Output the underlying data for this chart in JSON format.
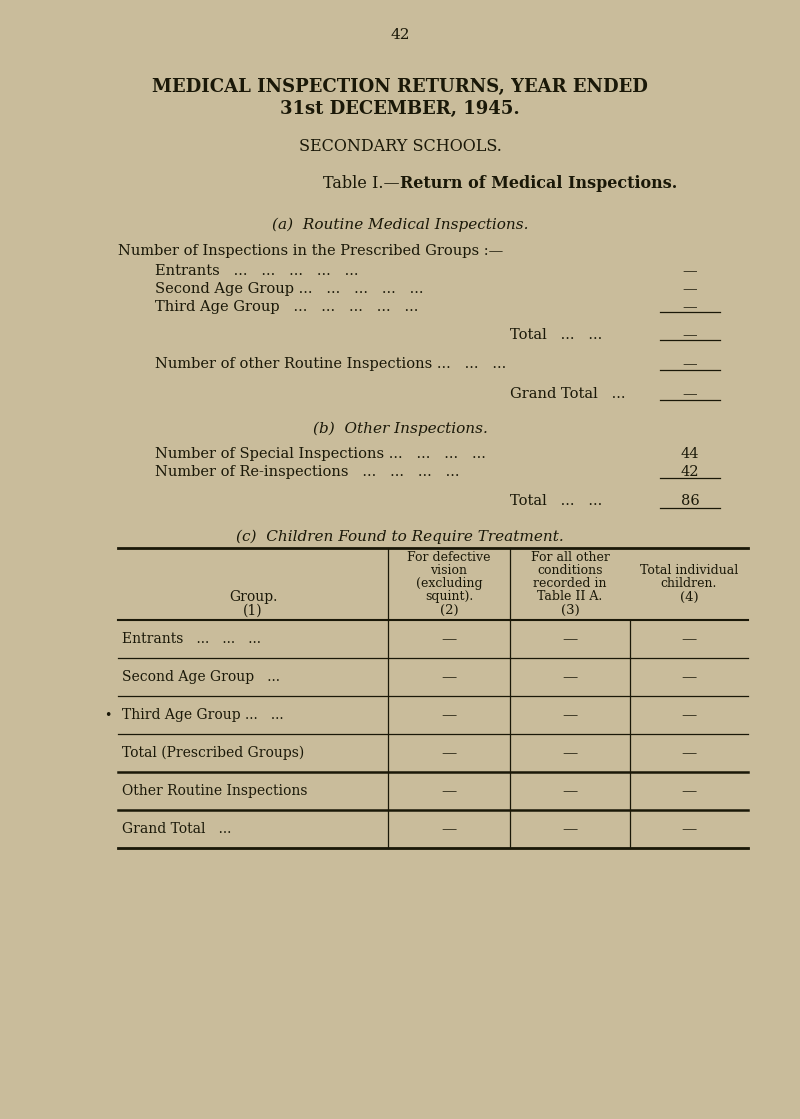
{
  "bg_color": "#c9bc9b",
  "page_number": "42",
  "title_line1": "MEDICAL INSPECTION RETURNS, YEAR ENDED",
  "title_line2": "31st DECEMBER, 1945.",
  "subtitle": "SECONDARY SCHOOLS.",
  "table_title_plain": "Table I.",
  "table_title_bold": "—Return of Medical Inspections.",
  "section_a_title": "(a)  Routine Medical Inspections.",
  "section_a_label": "Number of Inspections in the Prescribed Groups :—",
  "section_a_rows": [
    {
      "label": "Entrants   ...   ...   ...   ...   ...",
      "value": "—"
    },
    {
      "label": "Second Age Group ...   ...   ...   ...   ...",
      "value": "—"
    },
    {
      "label": "Third Age Group   ...   ...   ...   ...   ...",
      "value": "—"
    }
  ],
  "total_label": "Total",
  "total_dots": "...   ...",
  "total_value": "—",
  "other_routine_label": "Number of other Routine Inspections ...",
  "other_routine_dots": "...   ...",
  "other_routine_value": "—",
  "grand_total_label": "Grand Total",
  "grand_total_dots": "...",
  "grand_total_value": "—",
  "section_b_title": "(b)  Other Inspections.",
  "special_label": "Number of Special Inspections ...",
  "special_dots": "...   ...   ...",
  "special_value": "44",
  "reinspection_label": "Number of Re-inspections",
  "reinspection_dots": "...   ...   ...   ...",
  "reinspection_value": "42",
  "b_total_label": "Total",
  "b_total_dots": "...   ...",
  "b_total_value": "86",
  "section_c_title_plain": "(c)",
  "section_c_title_small": "Children Found to Require Treatment.",
  "table_rows": [
    {
      "label": "Entrants   ...   ...   ...",
      "dots": "",
      "v2": "—",
      "v3": "—",
      "v4": "—",
      "bold_bottom": false
    },
    {
      "label": "Second Age Group",
      "dots": "   ...",
      "v2": "—",
      "v3": "—",
      "v4": "—",
      "bold_bottom": false
    },
    {
      "label": "Third Age Group ...",
      "dots": "   ...",
      "v2": "—",
      "v3": "—",
      "v4": "—",
      "bold_bottom": false
    },
    {
      "label": "Total (Prescribed Groups)",
      "dots": "",
      "v2": "—",
      "v3": "—",
      "v4": "—",
      "bold_bottom": true
    },
    {
      "label": "Other Routine Inspections",
      "dots": "",
      "v2": "—",
      "v3": "—",
      "v4": "—",
      "bold_bottom": true
    },
    {
      "label": "Grand Total",
      "dots": "   ...",
      "v2": "—",
      "v3": "—",
      "v4": "—",
      "bold_bottom": false
    }
  ],
  "bullet_row": 2,
  "text_color": "#1a1808",
  "line_color": "#1a1808"
}
